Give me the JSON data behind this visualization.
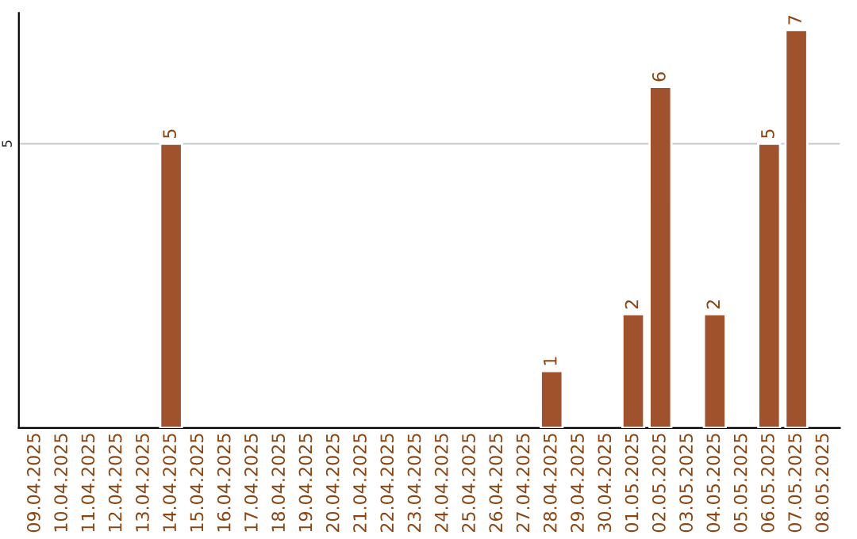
{
  "chart_data": {
    "type": "bar",
    "categories": [
      "09.04.2025",
      "10.04.2025",
      "11.04.2025",
      "12.04.2025",
      "13.04.2025",
      "14.04.2025",
      "15.04.2025",
      "16.04.2025",
      "17.04.2025",
      "18.04.2025",
      "19.04.2025",
      "20.04.2025",
      "21.04.2025",
      "22.04.2025",
      "23.04.2025",
      "24.04.2025",
      "25.04.2025",
      "26.04.2025",
      "27.04.2025",
      "28.04.2025",
      "29.04.2025",
      "30.04.2025",
      "01.05.2025",
      "02.05.2025",
      "03.05.2025",
      "04.05.2025",
      "05.05.2025",
      "06.05.2025",
      "07.05.2025",
      "08.05.2025"
    ],
    "values": [
      null,
      null,
      null,
      null,
      null,
      5,
      null,
      null,
      null,
      null,
      null,
      null,
      null,
      null,
      null,
      null,
      null,
      null,
      null,
      1,
      null,
      null,
      2,
      6,
      null,
      2,
      null,
      5,
      7,
      null
    ],
    "color": "#a0522d",
    "data_labels": true,
    "ylim": [
      0,
      7.3
    ],
    "yticks": [
      5
    ],
    "grid": "y"
  }
}
